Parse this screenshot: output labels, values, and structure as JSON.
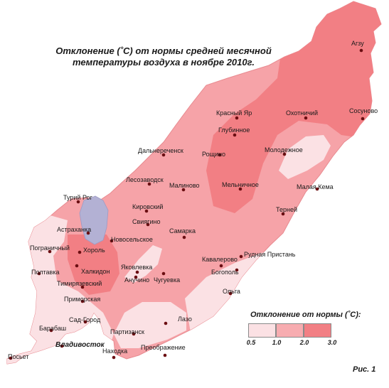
{
  "title": {
    "line1": "Отклонение (˚С) от нормы средней  месячной",
    "line2": "температуры воздуха  в ноябре 2010г."
  },
  "legend": {
    "title": "Отклонение от нормы (˚С):",
    "ticks": [
      "0.5",
      "1.0",
      "2.0",
      "3.0"
    ],
    "colors": [
      "#fbe1e4",
      "#f7acb0",
      "#f27f84"
    ]
  },
  "colors": {
    "zone_low": "#fbe1e4",
    "zone_mid": "#f6a3a8",
    "zone_high": "#f27f84",
    "lake": "#b3b1d4",
    "city_dot": "#6b0e12"
  },
  "cities": [
    {
      "id": "agzu",
      "name": "Агзу"
    },
    {
      "id": "krasny-yar",
      "name": "Красный Яр"
    },
    {
      "id": "okhotnichiy",
      "name": "Охотничий"
    },
    {
      "id": "sosunovo",
      "name": "Сосуново"
    },
    {
      "id": "glubinnoe",
      "name": "Глубинное"
    },
    {
      "id": "dalnerechensk",
      "name": "Дальнереченск"
    },
    {
      "id": "roshchino",
      "name": "Рощино"
    },
    {
      "id": "molodezhnoe",
      "name": "Молодежное"
    },
    {
      "id": "lesozavodsk",
      "name": "Лесозаводск"
    },
    {
      "id": "malinovo",
      "name": "Малиново"
    },
    {
      "id": "melnichnoe",
      "name": "Мельничное"
    },
    {
      "id": "malaya-kema",
      "name": "Малая Кема"
    },
    {
      "id": "turiy-rog",
      "name": "Турий Рог"
    },
    {
      "id": "kirovskiy",
      "name": "Кировский"
    },
    {
      "id": "terney",
      "name": "Терней"
    },
    {
      "id": "sviyagino",
      "name": "Свиягино"
    },
    {
      "id": "astrakhanka",
      "name": "Астраханка"
    },
    {
      "id": "samarka",
      "name": "Самарка"
    },
    {
      "id": "novoselskoe",
      "name": "Новосельское"
    },
    {
      "id": "pogranichny",
      "name": "Пограничный"
    },
    {
      "id": "khorol",
      "name": "Хороль"
    },
    {
      "id": "rudnaya-pristan",
      "name": "Рудная  Пристань"
    },
    {
      "id": "kavalerovo",
      "name": "Кавалерово"
    },
    {
      "id": "yakovlevka",
      "name": "Яковлевка"
    },
    {
      "id": "khalkidon",
      "name": "Халкидон"
    },
    {
      "id": "bogopol",
      "name": "Богополь"
    },
    {
      "id": "poltavka",
      "name": "Полтавка"
    },
    {
      "id": "anuchino",
      "name": "Анучино"
    },
    {
      "id": "chuguevka",
      "name": "Чугуевка"
    },
    {
      "id": "timiryazevskiy",
      "name": "Тимирязевский"
    },
    {
      "id": "olga",
      "name": "Ольга"
    },
    {
      "id": "primorskaya",
      "name": "Приморская"
    },
    {
      "id": "lazo",
      "name": "Лазо"
    },
    {
      "id": "sad-gorod",
      "name": "Сад-Город"
    },
    {
      "id": "barabash",
      "name": "Барабаш"
    },
    {
      "id": "partizansk",
      "name": "Партизанск"
    },
    {
      "id": "vladivostok",
      "name": "Владивосток"
    },
    {
      "id": "nakhodka",
      "name": "Находка"
    },
    {
      "id": "preobrazhenie",
      "name": "Преображение"
    },
    {
      "id": "posyet",
      "name": "Посьет"
    }
  ],
  "caption": "Рис. 1"
}
